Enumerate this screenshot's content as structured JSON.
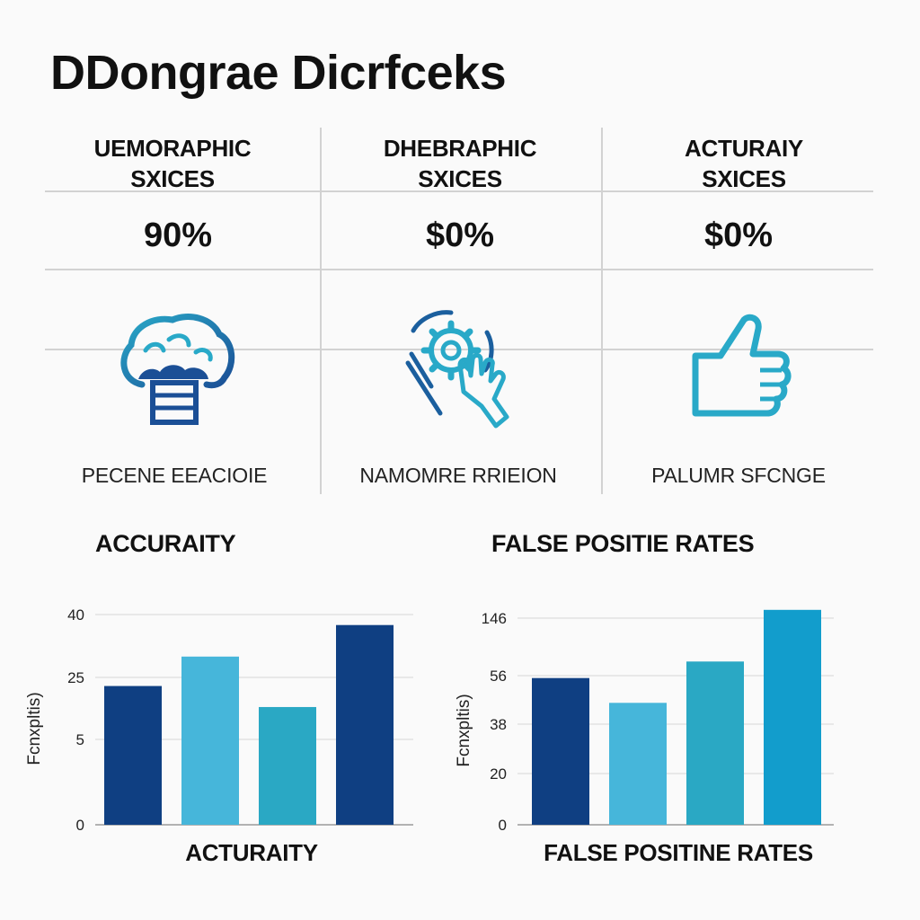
{
  "page": {
    "title": "DDongrae Dicrfceks"
  },
  "columns": [
    {
      "heading_line1": "UEMORAPHIC",
      "heading_line2": "SXICES",
      "value": "90%",
      "icon": "brain-icon",
      "caption": "PECENE EEACIOIE"
    },
    {
      "heading_line1": "DHEBRAPHIC",
      "heading_line2": "SXICES",
      "value": "$0%",
      "icon": "gear-hand-icon",
      "caption": "NAMOMRE RRIEION"
    },
    {
      "heading_line1": "ACTURAIY",
      "heading_line2": "SXICES",
      "value": "$0%",
      "icon": "thumbs-up-icon",
      "caption": "PALUMR SFCNGE"
    }
  ],
  "colors": {
    "icon_primary": "#1b5f9e",
    "icon_secondary": "#29a9c8",
    "bar_navy": "#0f3f82",
    "bar_light": "#46b6da",
    "bar_teal": "#2aa8c4",
    "bar_blue": "#129dcc"
  },
  "chart_data": [
    {
      "type": "bar",
      "title": "ACCURAITY",
      "xlabel": "ACTURAITY",
      "ylabel": "Fcnxpltis)",
      "yticks": [
        "0",
        "5",
        "25",
        "40"
      ],
      "categories": [
        "",
        "",
        "",
        ""
      ],
      "values": [
        0.66,
        0.8,
        0.56,
        0.95
      ],
      "value_scale": "fraction of top gridline (ticks are unevenly labeled)",
      "bar_colors": [
        "#0f3f82",
        "#46b6da",
        "#2aa8c4",
        "#0f3f82"
      ],
      "grid": true
    },
    {
      "type": "bar",
      "title": "FALSE POSITIE RATES",
      "xlabel": "FALSE POSITINE RATES",
      "ylabel": "Fcnxpltis)",
      "yticks": [
        "0",
        "20",
        "38",
        "56",
        "146"
      ],
      "categories": [
        "",
        "",
        "",
        ""
      ],
      "values": [
        0.71,
        0.59,
        0.79,
        1.04
      ],
      "value_scale": "fraction of top gridline (ticks are unevenly labeled)",
      "bar_colors": [
        "#0f3f82",
        "#46b6da",
        "#2aa8c4",
        "#129dcc"
      ],
      "grid": true
    }
  ]
}
